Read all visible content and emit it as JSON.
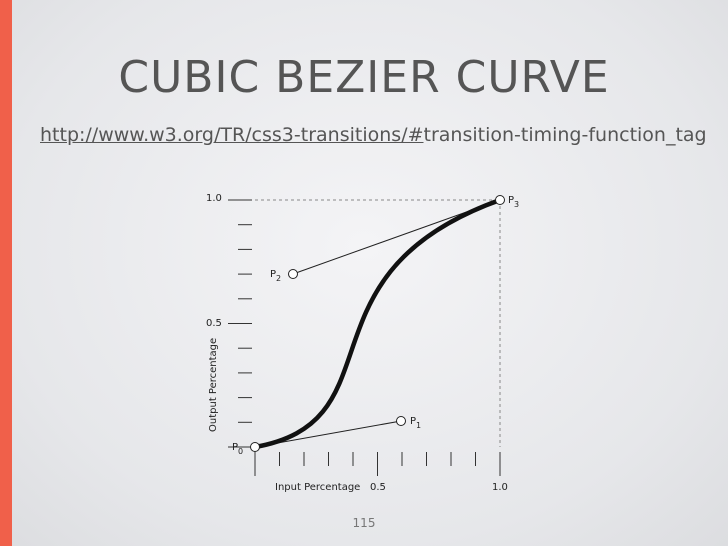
{
  "slide": {
    "title": "CUBIC BEZIER CURVE",
    "url": {
      "link": "http://www.w3.org/TR/css3-transitions/#",
      "rest": "transition-timing-function_tag"
    },
    "diagram": {
      "y_label": "Output Percentage",
      "x_label": "Input Percentage",
      "y_ticks": [
        "1.0",
        "0.5"
      ],
      "x_ticks": [
        "0.5",
        "1.0"
      ],
      "points": [
        {
          "base": "P",
          "index": "0"
        },
        {
          "base": "P",
          "index": "1"
        },
        {
          "base": "P",
          "index": "2"
        },
        {
          "base": "P",
          "index": "3"
        }
      ]
    },
    "page_number": "115"
  }
}
